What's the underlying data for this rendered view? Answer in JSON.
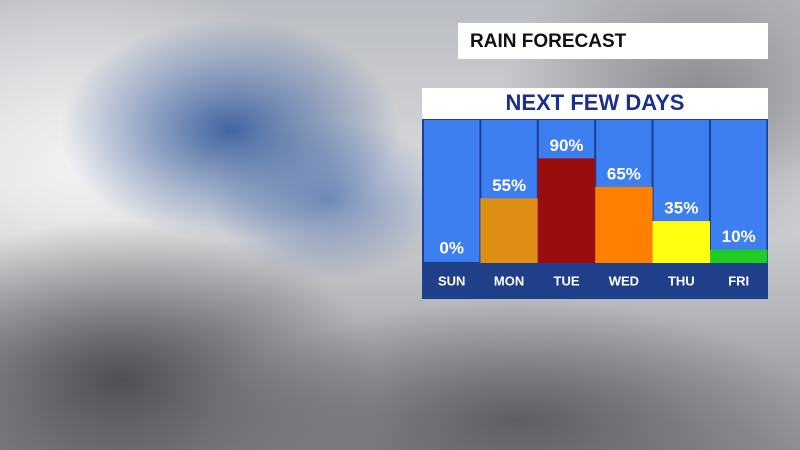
{
  "chart_data": {
    "type": "bar",
    "title": "RAIN FORECAST",
    "subtitle": "NEXT FEW DAYS",
    "categories": [
      "SUN",
      "MON",
      "TUE",
      "WED",
      "THU",
      "FRI"
    ],
    "values": [
      0,
      55,
      90,
      65,
      35,
      10
    ],
    "value_labels": [
      "0%",
      "55%",
      "90%",
      "65%",
      "35%",
      "10%"
    ],
    "colors": [
      "#ffffff",
      "#de8e12",
      "#9b0d0d",
      "#ff8000",
      "#ffff10",
      "#22cc22"
    ]
  }
}
